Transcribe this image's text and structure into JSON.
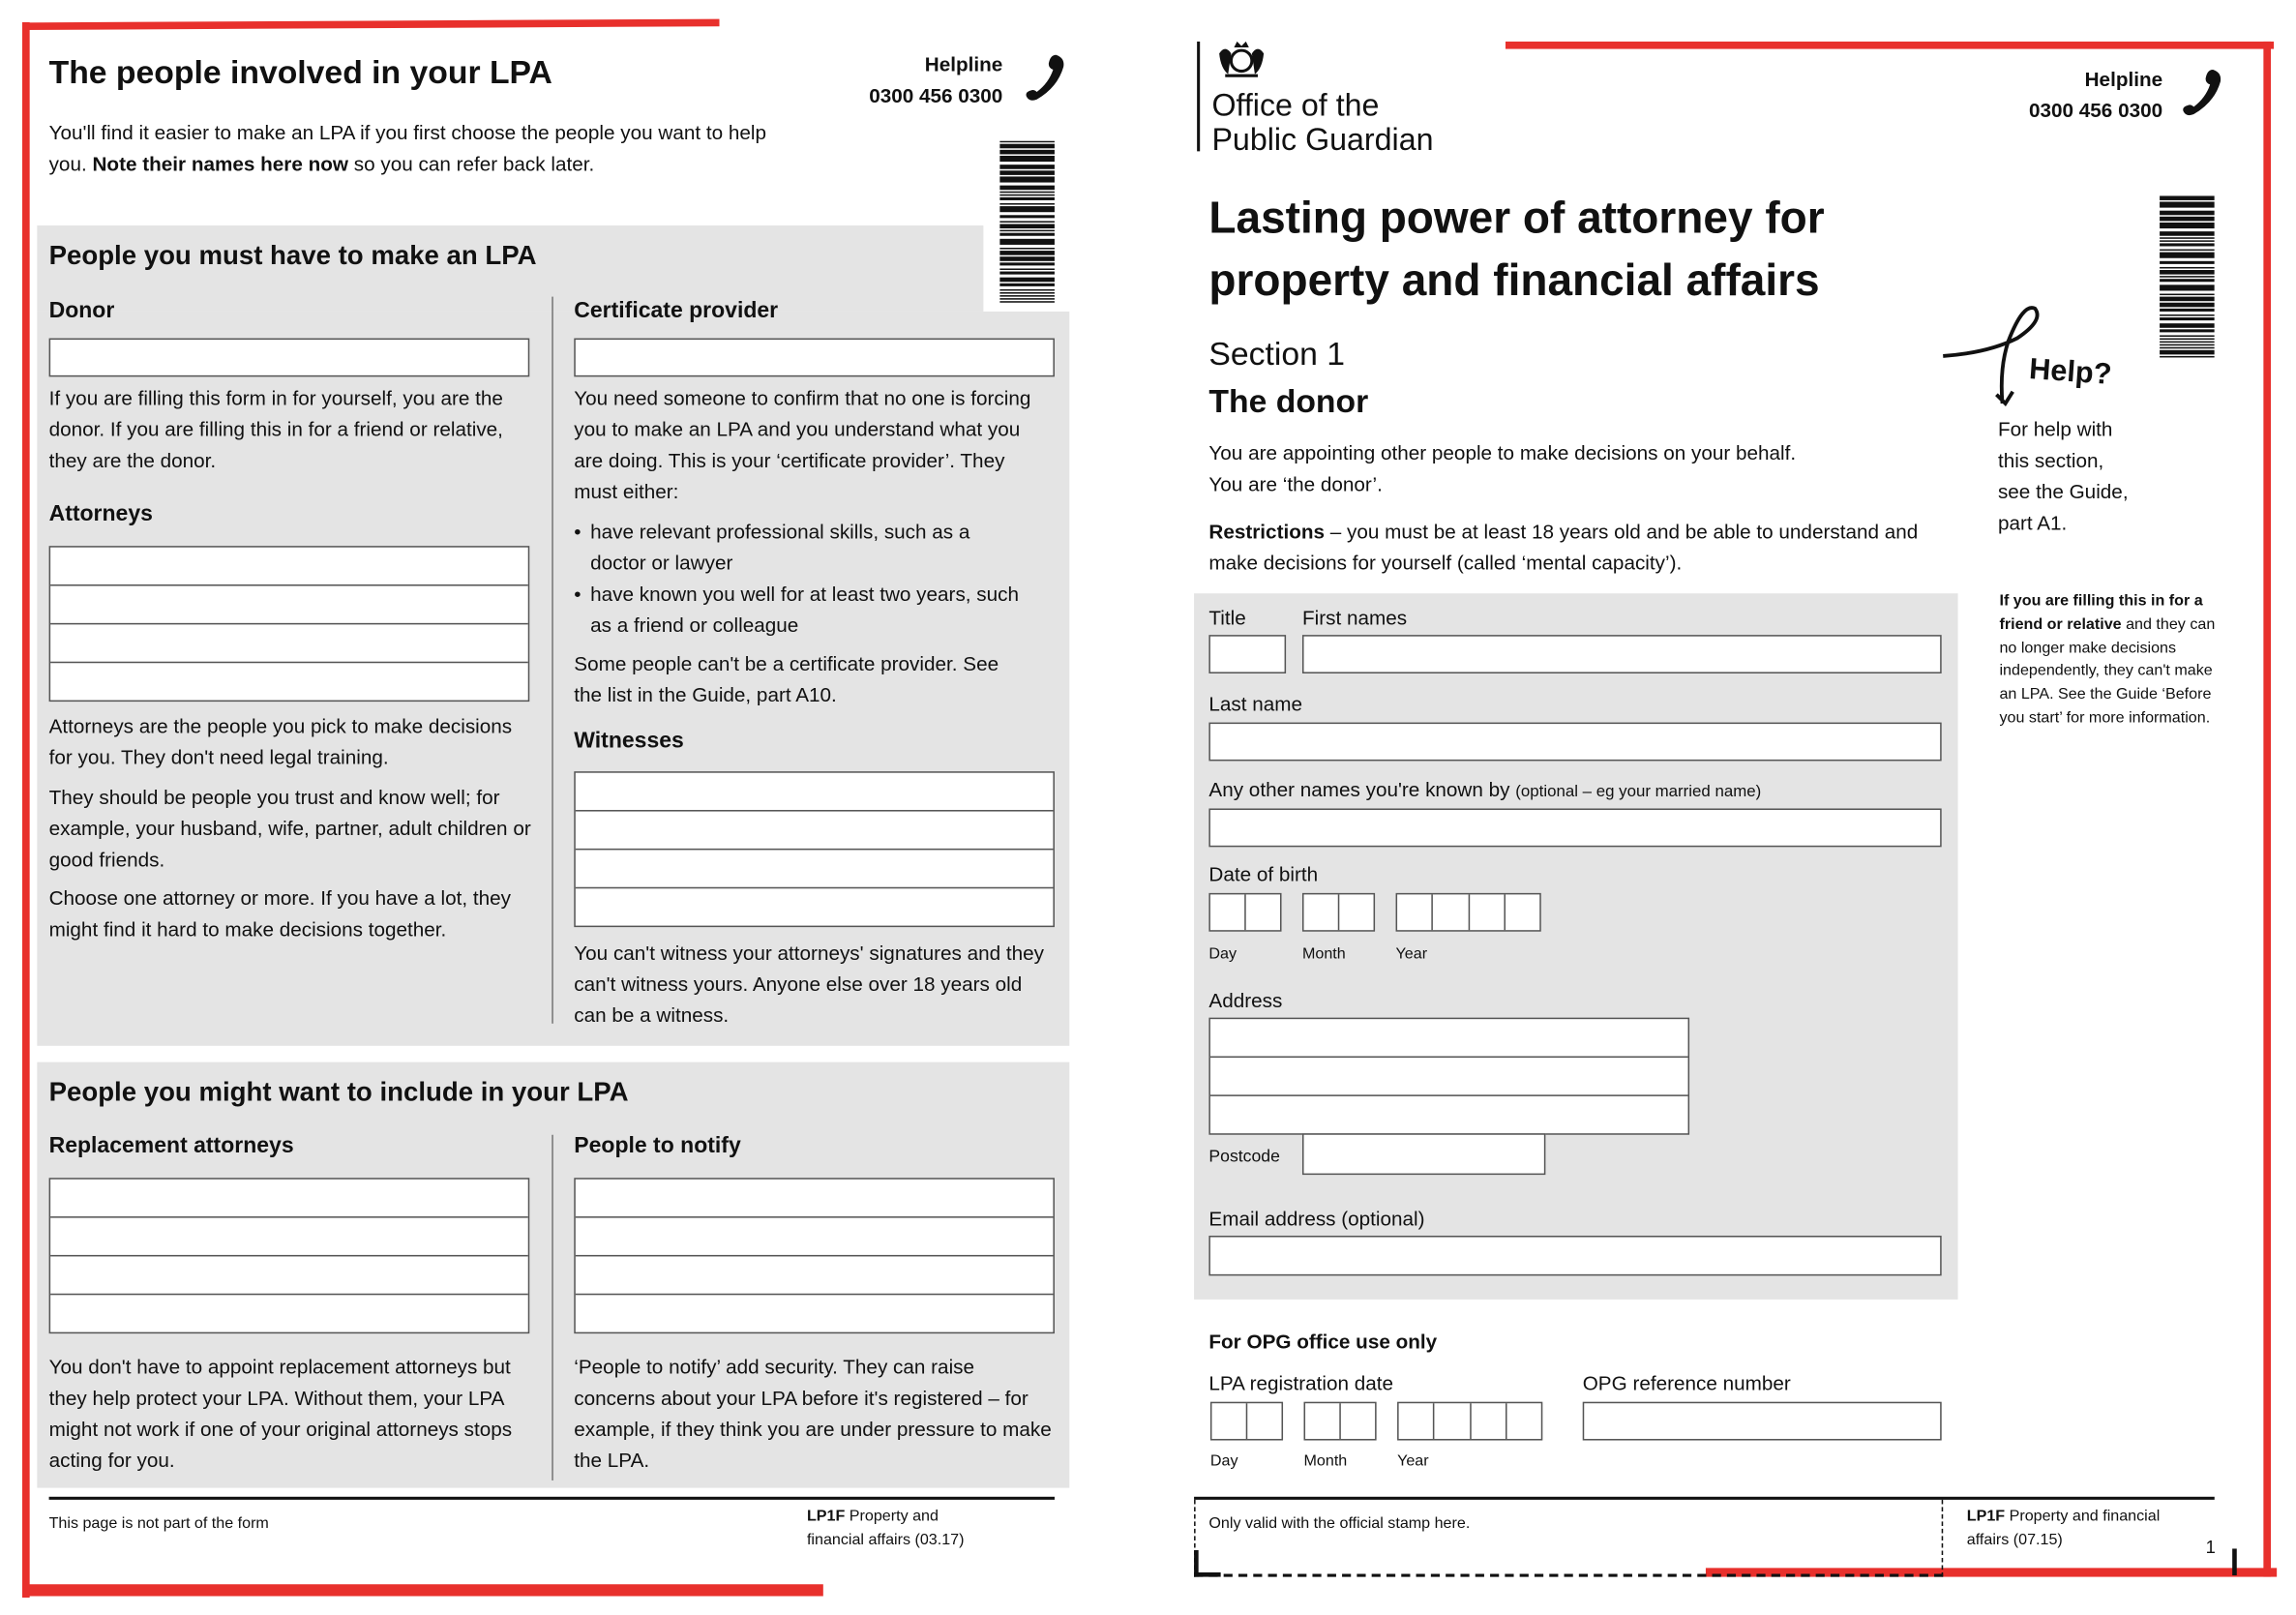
{
  "colors": {
    "accent_red": "#e8302c",
    "panel_gray": "#e4e4e4"
  },
  "left_page": {
    "title": "The people involved in your LPA",
    "helpline": {
      "label": "Helpline",
      "number": "0300 456 0300",
      "icon": "phone-icon"
    },
    "intro_pre": "You'll find it easier to make an LPA if you first choose the people you want to help you. ",
    "intro_bold": "Note their names here now",
    "intro_post": " so you can refer back later.",
    "must_have": {
      "heading": "People you must have to make an LPA",
      "donor": {
        "label": "Donor",
        "text": "If you are filling this form in for yourself, you are the donor. If you are filling this in for a friend or relative, they are the donor."
      },
      "attorneys": {
        "label": "Attorneys",
        "text1": "Attorneys are the people you pick to make decisions for you. They don't need legal training.",
        "text2": "They should be people you trust and know well; for example, your husband, wife, partner, adult children or good friends.",
        "text3": "Choose one attorney or more. If you have a lot, they might find it hard to make decisions together."
      },
      "certificate_provider": {
        "label": "Certificate provider",
        "text": "You need someone to confirm that no one is forcing you to make an LPA and you understand what you are doing. This is your ‘certificate provider’. They must either:",
        "bullets": [
          "have relevant professional skills, such as a doctor or lawyer",
          "have known you well for at least two years, such as a friend or colleague"
        ],
        "text2": "Some people can't be a certificate provider. See the list in the Guide, part A10."
      },
      "witnesses": {
        "label": "Witnesses",
        "text": "You can't witness your attorneys' signatures and they can't witness yours. Anyone else over 18 years old can be a witness."
      }
    },
    "might_want": {
      "heading": "People you might want to include in your LPA",
      "replacement": {
        "label": "Replacement attorneys",
        "text": "You don't have to appoint replacement attorneys but they help protect your LPA. Without them, your LPA might not work if one of your original attorneys stops acting for you."
      },
      "notify": {
        "label": "People to notify",
        "text": "‘People to notify’ add security. They can raise concerns about your LPA before it's registered – for example, if they think you are under pressure to make the LPA."
      }
    },
    "footer": {
      "note": "This page is not part of the form",
      "code": "LP1F",
      "desc1": "Property and",
      "desc2": "financial affairs (03.17)"
    }
  },
  "right_page": {
    "logo": {
      "line1": "Office of the",
      "line2": "Public Guardian",
      "icon": "royal-crest-icon"
    },
    "helpline": {
      "label": "Helpline",
      "number": "0300 456 0300",
      "icon": "phone-icon"
    },
    "title1": "Lasting power of attorney for",
    "title2": "property and financial affairs",
    "section": "Section 1",
    "section_title": "The donor",
    "intro1": "You are appointing other people to make decisions on your behalf.",
    "intro2": "You are ‘the donor’.",
    "restrictions_bold": "Restrictions",
    "restrictions_text": " – you must be at least 18 years old and be able to understand and make decisions for yourself (called ‘mental capacity’).",
    "form": {
      "title": "Title",
      "first_names": "First names",
      "last_name": "Last name",
      "other_names": "Any other names you're known by",
      "other_names_hint": "(optional – eg your married name)",
      "dob": "Date of birth",
      "day": "Day",
      "month": "Month",
      "year": "Year",
      "address": "Address",
      "postcode": "Postcode",
      "email": "Email address (optional)"
    },
    "office": {
      "heading": "For OPG office use only",
      "reg_date": "LPA registration date",
      "ref": "OPG reference number",
      "day": "Day",
      "month": "Month",
      "year": "Year"
    },
    "help": {
      "label": "Help?",
      "text": "For help with this section, see the Guide, part A1.",
      "note_bold": "If you are filling this in for a friend or relative",
      "note_text": " and they can no longer make decisions independently, they can't make an LPA. See the Guide ‘Before you start’ for more information."
    },
    "footer": {
      "stamp": "Only valid with the official stamp here.",
      "code": "LP1F",
      "desc1": "Property and financial",
      "desc2": "affairs (07.15)",
      "page": "1"
    }
  }
}
